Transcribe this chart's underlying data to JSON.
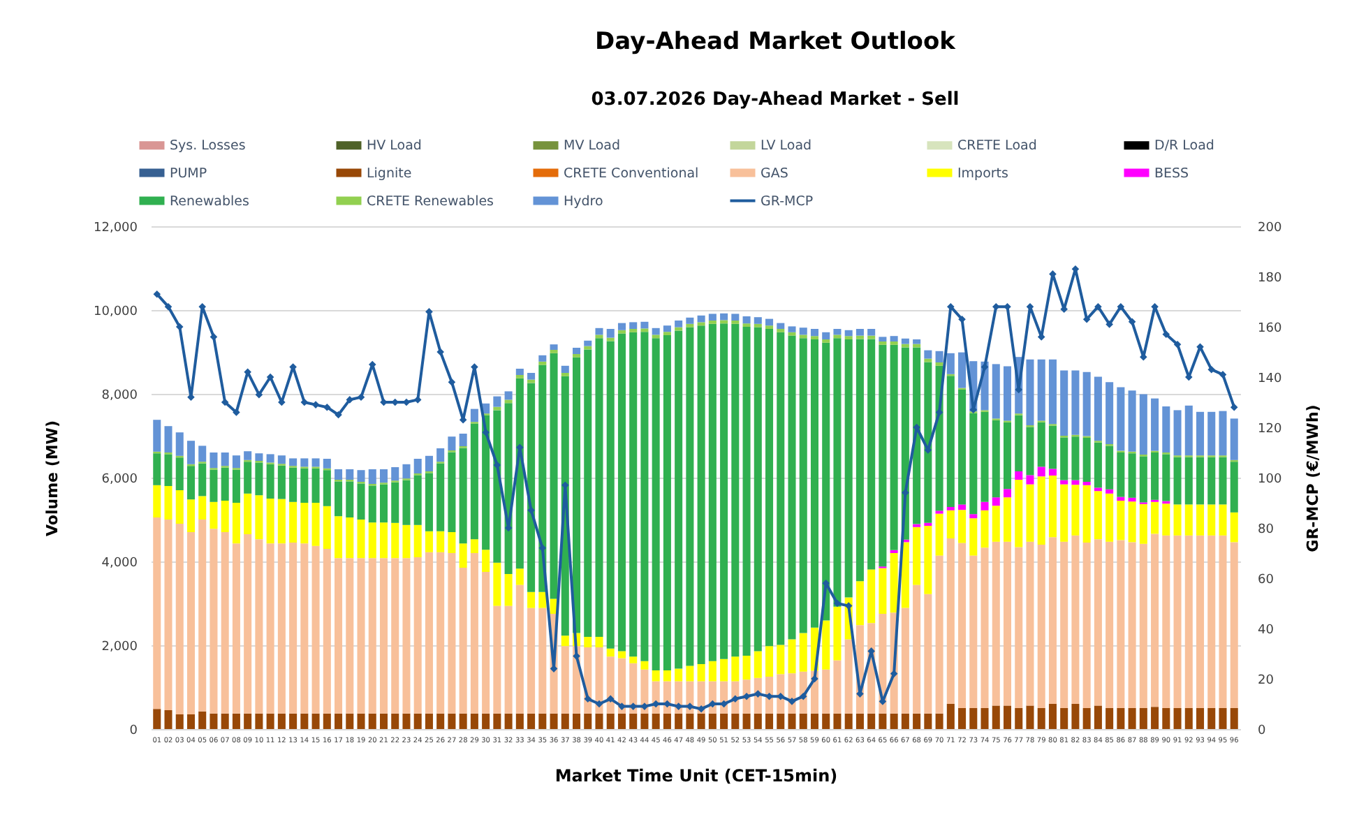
{
  "chart_data": {
    "type": "bar",
    "title": "Day-Ahead Market Outlook",
    "subtitle": "03.07.2026  Day-Ahead Market - Sell",
    "xlabel": "Market Time Unit (CET-15min)",
    "ylabel": "Volume (MW)",
    "y2label": "GR-MCP (€/MWh)",
    "categories": [
      "01",
      "02",
      "03",
      "04",
      "05",
      "06",
      "07",
      "08",
      "09",
      "10",
      "11",
      "12",
      "13",
      "14",
      "15",
      "16",
      "17",
      "18",
      "19",
      "20",
      "21",
      "22",
      "23",
      "24",
      "25",
      "26",
      "27",
      "28",
      "29",
      "30",
      "31",
      "32",
      "33",
      "34",
      "35",
      "36",
      "37",
      "38",
      "39",
      "40",
      "41",
      "42",
      "43",
      "44",
      "45",
      "46",
      "47",
      "48",
      "49",
      "50",
      "51",
      "52",
      "53",
      "54",
      "55",
      "56",
      "57",
      "58",
      "59",
      "60",
      "61",
      "62",
      "63",
      "64",
      "65",
      "66",
      "67",
      "68",
      "69",
      "70",
      "71",
      "72",
      "73",
      "74",
      "75",
      "76",
      "77",
      "78",
      "79",
      "80",
      "81",
      "82",
      "83",
      "84",
      "85",
      "86",
      "87",
      "88",
      "89",
      "90",
      "91",
      "92",
      "93",
      "94",
      "95",
      "96"
    ],
    "stacked": true,
    "ylim": [
      0,
      12000
    ],
    "yticks": [
      {
        "value": 0,
        "label": "0"
      },
      {
        "value": 2000,
        "label": "2,000"
      },
      {
        "value": 4000,
        "label": "4,000"
      },
      {
        "value": 6000,
        "label": "6,000"
      },
      {
        "value": 8000,
        "label": "8,000"
      },
      {
        "value": 10000,
        "label": "10,000"
      },
      {
        "value": 12000,
        "label": "12,000"
      }
    ],
    "y2lim": [
      0,
      200
    ],
    "y2ticks": [
      0,
      20,
      40,
      60,
      80,
      100,
      120,
      140,
      160,
      180,
      200
    ],
    "grid": "y",
    "legend": "top",
    "marker": "diamond",
    "series": [
      {
        "name": "Sys. Losses",
        "color": "#d99694",
        "values": [
          null,
          null,
          null,
          null,
          null,
          null,
          null,
          null,
          null,
          null,
          null,
          null,
          null,
          null,
          null,
          null,
          null,
          null,
          null,
          null,
          null,
          null,
          null,
          null,
          null,
          null,
          null,
          null,
          null,
          null,
          null,
          null,
          null,
          null,
          null,
          null,
          null,
          null,
          null,
          null,
          null,
          null,
          null,
          null,
          null,
          null,
          null,
          null,
          null,
          null,
          null,
          null,
          null,
          null,
          null,
          null,
          null,
          null,
          null,
          null,
          null,
          null,
          null,
          null,
          null,
          null,
          null,
          null,
          null,
          null,
          null,
          null,
          null,
          null,
          null,
          null,
          null,
          null,
          null,
          null,
          null,
          null,
          null,
          null,
          null,
          null,
          null,
          null,
          null,
          null,
          null,
          null,
          null,
          null,
          null,
          null
        ]
      },
      {
        "name": "HV Load",
        "color": "#4f6228",
        "values": [
          null,
          null,
          null,
          null,
          null,
          null,
          null,
          null,
          null,
          null,
          null,
          null,
          null,
          null,
          null,
          null,
          null,
          null,
          null,
          null,
          null,
          null,
          null,
          null,
          null,
          null,
          null,
          null,
          null,
          null,
          null,
          null,
          null,
          null,
          null,
          null,
          null,
          null,
          null,
          null,
          null,
          null,
          null,
          null,
          null,
          null,
          null,
          null,
          null,
          null,
          null,
          null,
          null,
          null,
          null,
          null,
          null,
          null,
          null,
          null,
          null,
          null,
          null,
          null,
          null,
          null,
          null,
          null,
          null,
          null,
          null,
          null,
          null,
          null,
          null,
          null,
          null,
          null,
          null,
          null,
          null,
          null,
          null,
          null,
          null,
          null,
          null,
          null,
          null,
          null,
          null,
          null,
          null,
          null,
          null,
          null
        ]
      },
      {
        "name": "MV Load",
        "color": "#77933c",
        "values": [
          null,
          null,
          null,
          null,
          null,
          null,
          null,
          null,
          null,
          null,
          null,
          null,
          null,
          null,
          null,
          null,
          null,
          null,
          null,
          null,
          null,
          null,
          null,
          null,
          null,
          null,
          null,
          null,
          null,
          null,
          null,
          null,
          null,
          null,
          null,
          null,
          null,
          null,
          null,
          null,
          null,
          null,
          null,
          null,
          null,
          null,
          null,
          null,
          null,
          null,
          null,
          null,
          null,
          null,
          null,
          null,
          null,
          null,
          null,
          null,
          null,
          null,
          null,
          null,
          null,
          null,
          null,
          null,
          null,
          null,
          null,
          null,
          null,
          null,
          null,
          null,
          null,
          null,
          null,
          null,
          null,
          null,
          null,
          null,
          null,
          null,
          null,
          null,
          null,
          null,
          null,
          null,
          null,
          null,
          null,
          null
        ]
      },
      {
        "name": "LV Load",
        "color": "#c3d69b",
        "values": [
          null,
          null,
          null,
          null,
          null,
          null,
          null,
          null,
          null,
          null,
          null,
          null,
          null,
          null,
          null,
          null,
          null,
          null,
          null,
          null,
          null,
          null,
          null,
          null,
          null,
          null,
          null,
          null,
          null,
          null,
          null,
          null,
          null,
          null,
          null,
          null,
          null,
          null,
          null,
          null,
          null,
          null,
          null,
          null,
          null,
          null,
          null,
          null,
          null,
          null,
          null,
          null,
          null,
          null,
          null,
          null,
          null,
          null,
          null,
          null,
          null,
          null,
          null,
          null,
          null,
          null,
          null,
          null,
          null,
          null,
          null,
          null,
          null,
          null,
          null,
          null,
          null,
          null,
          null,
          null,
          null,
          null,
          null,
          null,
          null,
          null,
          null,
          null,
          null,
          null,
          null,
          null,
          null,
          null,
          null,
          null
        ]
      },
      {
        "name": "CRETE Load",
        "color": "#d7e4bd",
        "values": [
          null,
          null,
          null,
          null,
          null,
          null,
          null,
          null,
          null,
          null,
          null,
          null,
          null,
          null,
          null,
          null,
          null,
          null,
          null,
          null,
          null,
          null,
          null,
          null,
          null,
          null,
          null,
          null,
          null,
          null,
          null,
          null,
          null,
          null,
          null,
          null,
          null,
          null,
          null,
          null,
          null,
          null,
          null,
          null,
          null,
          null,
          null,
          null,
          null,
          null,
          null,
          null,
          null,
          null,
          null,
          null,
          null,
          null,
          null,
          null,
          null,
          null,
          null,
          null,
          null,
          null,
          null,
          null,
          null,
          null,
          null,
          null,
          null,
          null,
          null,
          null,
          null,
          null,
          null,
          null,
          null,
          null,
          null,
          null,
          null,
          null,
          null,
          null,
          null,
          null,
          null,
          null,
          null,
          null,
          null,
          null
        ]
      },
      {
        "name": "D/R Load",
        "color": "#000000",
        "values": [
          null,
          null,
          null,
          null,
          null,
          null,
          null,
          null,
          null,
          null,
          null,
          null,
          null,
          null,
          null,
          null,
          null,
          null,
          null,
          null,
          null,
          null,
          null,
          null,
          null,
          null,
          null,
          null,
          null,
          null,
          null,
          null,
          null,
          null,
          null,
          null,
          null,
          null,
          null,
          null,
          null,
          null,
          null,
          null,
          null,
          null,
          null,
          null,
          null,
          null,
          null,
          null,
          null,
          null,
          null,
          null,
          null,
          null,
          null,
          null,
          null,
          null,
          null,
          null,
          null,
          null,
          null,
          null,
          null,
          null,
          null,
          null,
          null,
          null,
          null,
          null,
          null,
          null,
          null,
          null,
          null,
          null,
          null,
          null,
          null,
          null,
          null,
          null,
          null,
          null,
          null,
          null,
          null,
          null,
          null,
          null
        ]
      },
      {
        "name": "PUMP",
        "color": "#376092",
        "values": [
          null,
          null,
          null,
          null,
          null,
          null,
          null,
          null,
          null,
          null,
          null,
          null,
          null,
          null,
          null,
          null,
          null,
          null,
          null,
          null,
          null,
          null,
          null,
          null,
          null,
          null,
          null,
          null,
          null,
          null,
          null,
          null,
          null,
          null,
          null,
          null,
          null,
          null,
          null,
          null,
          null,
          null,
          null,
          null,
          null,
          null,
          null,
          null,
          null,
          null,
          null,
          null,
          null,
          null,
          null,
          null,
          null,
          null,
          null,
          null,
          null,
          null,
          null,
          null,
          null,
          null,
          null,
          null,
          null,
          null,
          null,
          null,
          null,
          null,
          null,
          null,
          null,
          null,
          null,
          null,
          null,
          null,
          null,
          null,
          null,
          null,
          null,
          null,
          null,
          null,
          null,
          null,
          null,
          null,
          null,
          null
        ]
      },
      {
        "name": "Lignite",
        "color": "#984807",
        "values": [
          480,
          450,
          350,
          350,
          420,
          370,
          370,
          370,
          370,
          370,
          370,
          370,
          370,
          370,
          370,
          370,
          370,
          370,
          370,
          370,
          370,
          370,
          370,
          370,
          370,
          370,
          370,
          370,
          370,
          370,
          370,
          370,
          370,
          370,
          370,
          370,
          370,
          370,
          370,
          370,
          370,
          370,
          370,
          370,
          370,
          370,
          370,
          370,
          370,
          370,
          370,
          370,
          370,
          370,
          370,
          370,
          370,
          370,
          370,
          370,
          370,
          370,
          370,
          370,
          370,
          370,
          370,
          370,
          370,
          370,
          600,
          500,
          500,
          500,
          560,
          560,
          500,
          560,
          500,
          600,
          500,
          600,
          500,
          560,
          500,
          500,
          500,
          500,
          530,
          500,
          500,
          500,
          500,
          500,
          500,
          500
        ]
      },
      {
        "name": "CRETE Conventional",
        "color": "#e46c0a",
        "values": [
          null,
          null,
          null,
          null,
          null,
          null,
          null,
          null,
          null,
          null,
          null,
          null,
          null,
          null,
          null,
          null,
          null,
          null,
          null,
          null,
          null,
          null,
          null,
          null,
          null,
          null,
          null,
          null,
          null,
          null,
          null,
          null,
          null,
          null,
          null,
          null,
          null,
          null,
          null,
          null,
          null,
          null,
          null,
          null,
          null,
          null,
          null,
          null,
          null,
          null,
          null,
          null,
          null,
          null,
          null,
          null,
          null,
          null,
          null,
          null,
          null,
          null,
          null,
          null,
          null,
          null,
          null,
          null,
          null,
          null,
          null,
          null,
          null,
          null,
          null,
          null,
          null,
          null,
          null,
          null,
          null,
          null,
          null,
          null,
          null,
          null,
          null,
          null,
          null,
          null,
          null,
          null,
          null,
          null,
          null,
          null
        ]
      },
      {
        "name": "GAS",
        "color": "#f8c09a",
        "values": [
          4570,
          4550,
          4550,
          4350,
          4580,
          4410,
          4330,
          4060,
          4280,
          4160,
          4060,
          4060,
          4080,
          4060,
          4000,
          3930,
          3710,
          3710,
          3710,
          3710,
          3710,
          3710,
          3710,
          3730,
          3850,
          3850,
          3830,
          3480,
          3830,
          3380,
          2570,
          2570,
          3070,
          2520,
          2520,
          2380,
          1610,
          1610,
          1580,
          1580,
          1360,
          1320,
          1200,
          1050,
          770,
          770,
          770,
          770,
          770,
          770,
          770,
          770,
          810,
          850,
          880,
          940,
          960,
          1000,
          1020,
          1050,
          1270,
          1770,
          2110,
          2160,
          2380,
          2410,
          2520,
          3070,
          2850,
          3770,
          3950,
          3940,
          3640,
          3830,
          3910,
          3910,
          3840,
          3910,
          3900,
          3980,
          3970,
          4020,
          3950,
          3970,
          3970,
          4010,
          3960,
          3920,
          4130,
          4120,
          4120,
          4120,
          4120,
          4120,
          4120,
          3960
        ]
      },
      {
        "name": "Imports",
        "color": "#ffff00",
        "values": [
          770,
          800,
          800,
          780,
          560,
          640,
          750,
          970,
          970,
          1050,
          1070,
          1060,
          970,
          970,
          1030,
          1020,
          1000,
          970,
          920,
          850,
          850,
          840,
          790,
          770,
          500,
          500,
          500,
          580,
          330,
          530,
          1030,
          760,
          390,
          380,
          380,
          360,
          250,
          310,
          250,
          250,
          190,
          170,
          160,
          200,
          260,
          260,
          300,
          370,
          410,
          480,
          530,
          590,
          570,
          640,
          730,
          700,
          810,
          920,
          1030,
          1170,
          1280,
          1000,
          1050,
          1280,
          1090,
          1420,
          1570,
          1380,
          1630,
          1000,
          670,
          790,
          890,
          890,
          860,
          1060,
          1610,
          1370,
          1630,
          1470,
          1370,
          1210,
          1370,
          1150,
          1150,
          940,
          970,
          950,
          760,
          760,
          740,
          740,
          740,
          740,
          740,
          710
        ]
      },
      {
        "name": "BESS",
        "color": "#ff00ff",
        "values": [
          null,
          null,
          null,
          null,
          null,
          null,
          null,
          null,
          null,
          null,
          null,
          null,
          null,
          null,
          null,
          null,
          null,
          null,
          null,
          null,
          null,
          null,
          null,
          null,
          null,
          null,
          null,
          null,
          null,
          null,
          null,
          null,
          null,
          null,
          null,
          null,
          null,
          null,
          null,
          null,
          null,
          null,
          null,
          null,
          null,
          null,
          null,
          null,
          null,
          null,
          null,
          null,
          null,
          null,
          null,
          null,
          null,
          null,
          null,
          null,
          null,
          null,
          null,
          null,
          40,
          70,
          60,
          70,
          70,
          70,
          80,
          130,
          100,
          200,
          200,
          200,
          200,
          220,
          230,
          160,
          100,
          110,
          80,
          80,
          100,
          90,
          90,
          40,
          50,
          60,
          null,
          null,
          null,
          null,
          null,
          null
        ]
      },
      {
        "name": "Renewables",
        "color": "#30b050",
        "values": [
          760,
          760,
          780,
          800,
          780,
          770,
          790,
          790,
          760,
          780,
          820,
          800,
          820,
          820,
          820,
          860,
          830,
          860,
          860,
          880,
          910,
          970,
          1070,
          1190,
          1390,
          1620,
          1910,
          2280,
          2760,
          3210,
          3640,
          4080,
          4540,
          4990,
          5420,
          5860,
          6190,
          6580,
          6860,
          7130,
          7340,
          7580,
          7740,
          7860,
          7930,
          8000,
          8070,
          8080,
          8080,
          8050,
          8010,
          7940,
          7850,
          7730,
          7570,
          7460,
          7250,
          7040,
          6880,
          6630,
          6410,
          6160,
          5780,
          5500,
          5290,
          4900,
          4590,
          4220,
          3840,
          3460,
          3130,
          2740,
          2410,
          2150,
          1840,
          1590,
          1340,
          1150,
          1060,
          1030,
          1020,
          1040,
          1050,
          1080,
          1040,
          1060,
          1060,
          1100,
          1130,
          1120,
          1130,
          1130,
          1130,
          1130,
          1130,
          1210
        ]
      },
      {
        "name": "CRETE Renewables",
        "color": "#92d050",
        "values": [
          40,
          40,
          40,
          40,
          40,
          40,
          40,
          40,
          40,
          40,
          40,
          40,
          40,
          40,
          40,
          40,
          40,
          40,
          40,
          40,
          40,
          40,
          40,
          40,
          40,
          40,
          40,
          40,
          40,
          40,
          80,
          80,
          80,
          80,
          80,
          80,
          80,
          80,
          80,
          80,
          80,
          80,
          80,
          80,
          80,
          80,
          80,
          80,
          80,
          80,
          80,
          80,
          80,
          80,
          80,
          80,
          80,
          80,
          80,
          80,
          80,
          80,
          80,
          80,
          80,
          80,
          80,
          80,
          80,
          80,
          40,
          40,
          40,
          40,
          40,
          40,
          40,
          40,
          40,
          40,
          40,
          40,
          40,
          40,
          40,
          40,
          40,
          40,
          40,
          40,
          40,
          40,
          40,
          40,
          40,
          40
        ]
      },
      {
        "name": "Hydro",
        "color": "#6393d6",
        "values": [
          760,
          630,
          560,
          560,
          380,
          370,
          320,
          300,
          210,
          180,
          200,
          200,
          180,
          200,
          200,
          230,
          250,
          250,
          280,
          350,
          320,
          320,
          340,
          350,
          370,
          320,
          330,
          300,
          310,
          240,
          250,
          200,
          150,
          160,
          150,
          130,
          170,
          150,
          130,
          160,
          210,
          170,
          160,
          160,
          160,
          150,
          160,
          150,
          160,
          160,
          160,
          160,
          170,
          160,
          160,
          140,
          140,
          170,
          170,
          170,
          140,
          140,
          160,
          160,
          110,
          130,
          130,
          110,
          200,
          270,
          500,
          850,
          1200,
          1160,
          1300,
          1300,
          1350,
          1570,
          1460,
          1540,
          1560,
          1540,
          1530,
          1530,
          1480,
          1520,
          1460,
          1440,
          1250,
          1100,
          1080,
          1190,
          1040,
          1040,
          1060,
          990
        ]
      },
      {
        "name": "GR-MCP",
        "type": "line",
        "axis": "y2",
        "color": "#1f5c9e",
        "values": [
          173,
          168,
          160,
          132,
          168,
          156,
          130,
          126,
          142,
          133,
          140,
          130,
          144,
          130,
          129,
          128,
          125,
          131,
          132,
          145,
          130,
          130,
          130,
          131,
          166,
          150,
          138,
          123,
          144,
          118,
          105,
          80,
          112,
          87,
          72,
          24,
          97,
          29,
          12,
          10,
          12,
          9,
          9,
          9,
          10,
          10,
          9,
          9,
          8,
          10,
          10,
          12,
          13,
          14,
          13,
          13,
          11,
          13,
          20,
          58,
          50,
          49,
          14,
          31,
          11,
          22,
          94,
          120,
          111,
          126,
          168,
          163,
          127,
          144,
          168,
          168,
          135,
          168,
          156,
          181,
          167,
          183,
          163,
          168,
          161,
          168,
          162,
          148,
          168,
          157,
          153,
          140,
          152,
          143,
          141,
          128
        ]
      }
    ]
  }
}
